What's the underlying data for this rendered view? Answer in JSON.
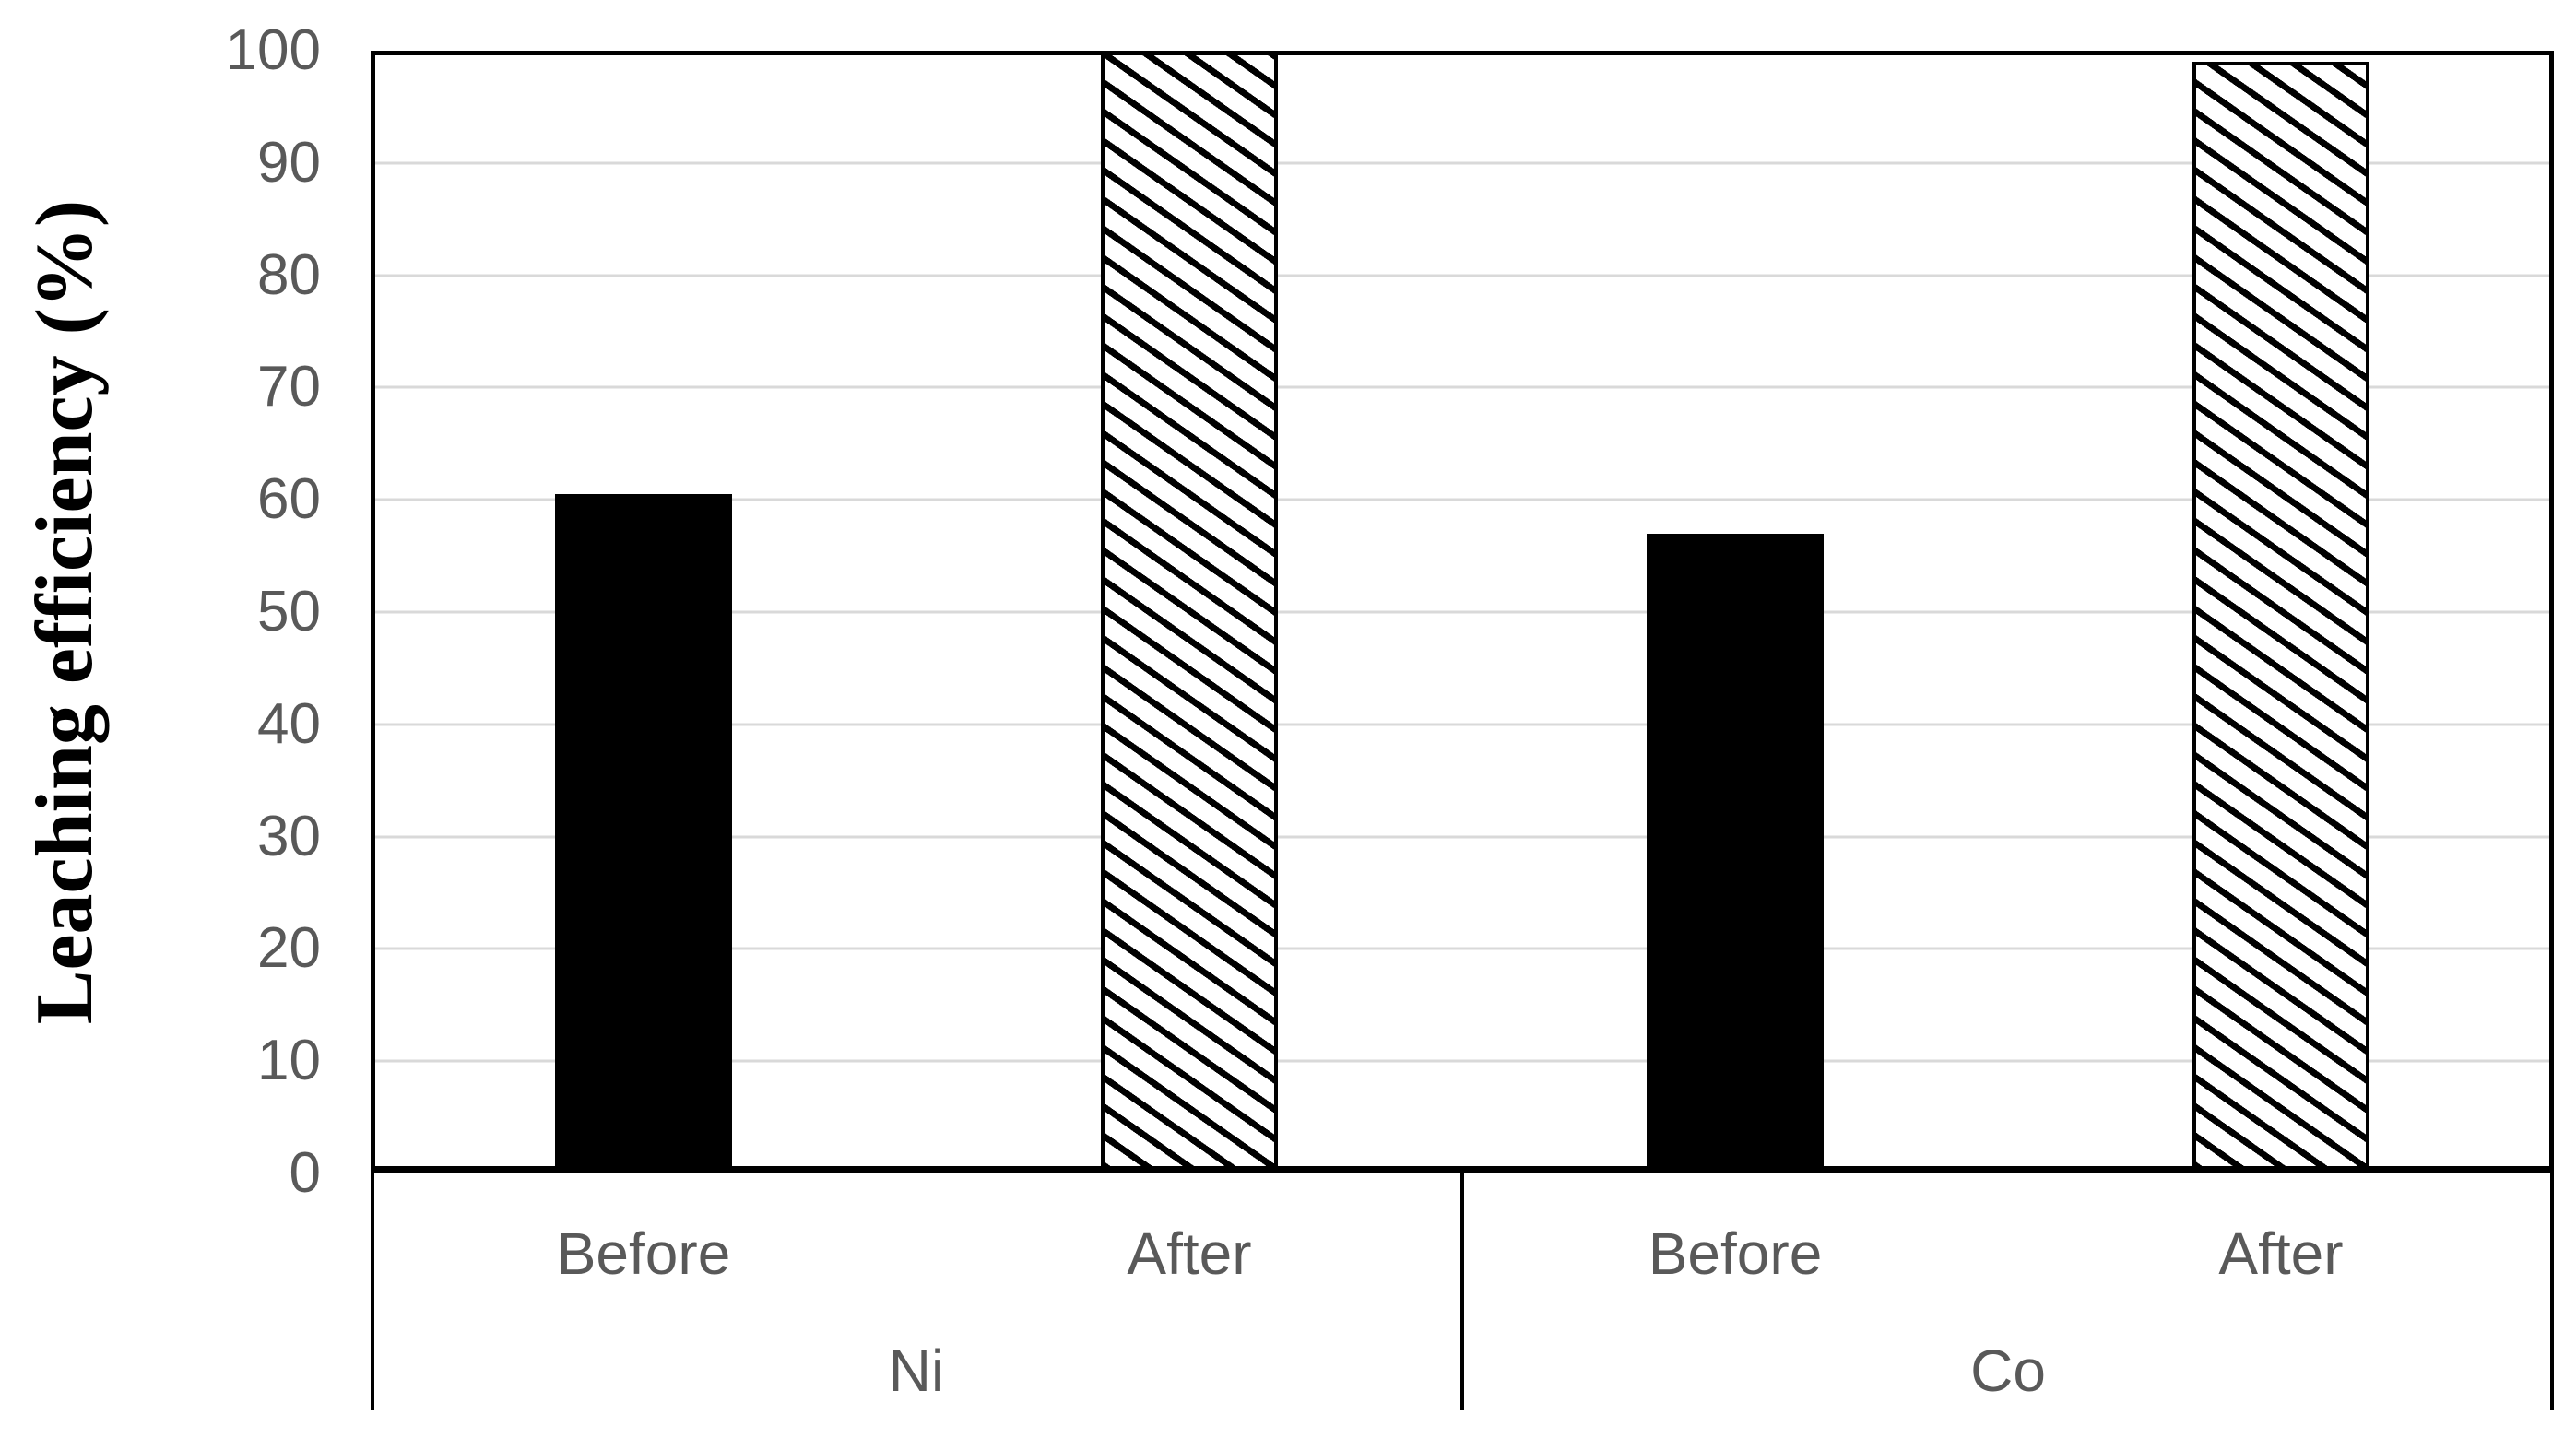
{
  "chart_data": {
    "type": "bar",
    "title": "",
    "ylabel": "Leaching efficiency (%)",
    "xlabel": "",
    "ylim": [
      0,
      100
    ],
    "ytick_interval": 10,
    "ytick_labels": [
      "0",
      "10",
      "20",
      "30",
      "40",
      "50",
      "60",
      "70",
      "80",
      "90",
      "100"
    ],
    "categories": [
      "Ni",
      "Co"
    ],
    "series": [
      {
        "name": "Before",
        "style": "solid-black",
        "values": [
          60.5,
          57
        ]
      },
      {
        "name": "After",
        "style": "diagonal-hatch",
        "values": [
          100,
          99
        ]
      }
    ],
    "grid": "horizontal",
    "legend": "none",
    "colors": {
      "bar_fill": "#000000",
      "hatch_fg": "#000000",
      "hatch_bg": "#ffffff",
      "gridline": "#d9d9d9",
      "axis_line": "#000000",
      "tick_label": "#595959",
      "category_label": "#595959",
      "axis_title": "#000000",
      "plot_bg": "#ffffff"
    }
  }
}
